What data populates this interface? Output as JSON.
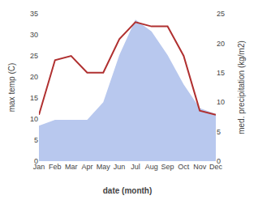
{
  "chart_data": {
    "type": "line",
    "xlabel": "date (month)",
    "ylabel": "max temp (C)",
    "y2label": "med. precipitation (kg/m2)",
    "categories": [
      "Jan",
      "Feb",
      "Mar",
      "Apr",
      "May",
      "Jun",
      "Jul",
      "Aug",
      "Sep",
      "Oct",
      "Nov",
      "Dec"
    ],
    "series": [
      {
        "type": "area",
        "color": "#b8c8ee",
        "axis": "y2",
        "values": [
          6,
          7,
          7,
          7,
          10,
          18,
          24,
          22,
          18,
          13,
          9,
          8
        ]
      },
      {
        "type": "line",
        "color": "#b03030",
        "values": [
          11,
          24,
          25,
          21,
          21,
          29,
          33,
          32,
          32,
          25,
          12,
          11
        ]
      }
    ],
    "ylim": [
      0,
      35
    ],
    "yticks": [
      0,
      5,
      10,
      15,
      20,
      25,
      30,
      35
    ],
    "y2lim": [
      0,
      25
    ],
    "y2ticks": [
      0,
      5,
      10,
      15,
      20,
      25
    ],
    "grid": false
  }
}
